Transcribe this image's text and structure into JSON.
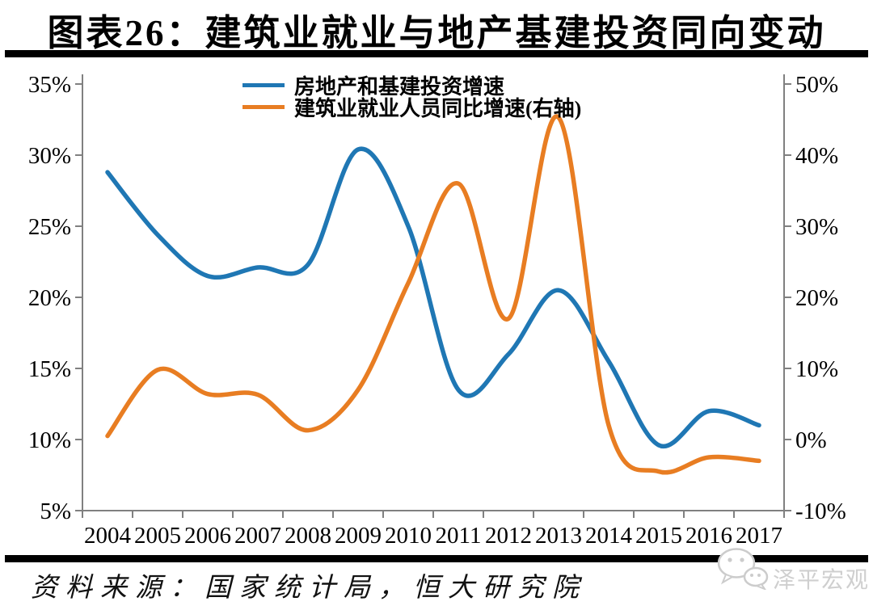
{
  "page": {
    "title": "图表26：建筑业就业与地产基建投资同向变动",
    "source_line": "资料来源：国家统计局，恒大研究院",
    "watermark": {
      "label": "泽平宏观",
      "icon": "wechat-logo-icon"
    }
  },
  "chart_data": {
    "type": "line",
    "title": "图表26：建筑业就业与地产基建投资同向变动",
    "categories": [
      "2004",
      "2005",
      "2006",
      "2007",
      "2008",
      "2009",
      "2010",
      "2011",
      "2012",
      "2013",
      "2014",
      "2015",
      "2016",
      "2017"
    ],
    "series": [
      {
        "name": "房地产和基建投资增速",
        "axis": "left",
        "color": "#1F77B4",
        "values": [
          28.8,
          24.4,
          21.5,
          22.1,
          22.3,
          30.4,
          25.0,
          13.5,
          16.0,
          20.5,
          15.5,
          9.6,
          12.0,
          11.0
        ]
      },
      {
        "name": "建筑业就业人员同比增速(右轴)",
        "axis": "right",
        "color": "#E87D22",
        "values": [
          0.5,
          9.8,
          6.4,
          6.3,
          1.3,
          7.0,
          22.0,
          36.0,
          17.0,
          45.3,
          2.0,
          -4.5,
          -2.5,
          -3.0
        ]
      }
    ],
    "y_axis_left": {
      "min": 5,
      "max": 35,
      "tick_values": [
        5,
        10,
        15,
        20,
        25,
        30,
        35
      ],
      "tick_labels": [
        "5%",
        "10%",
        "15%",
        "20%",
        "25%",
        "30%",
        "35%"
      ]
    },
    "y_axis_right": {
      "min": -10,
      "max": 50,
      "tick_values": [
        -10,
        0,
        10,
        20,
        30,
        40,
        50
      ],
      "tick_labels": [
        "-10%",
        "0%",
        "10%",
        "20%",
        "30%",
        "40%",
        "50%"
      ]
    },
    "x_axis": {
      "tick_labels": [
        "2004",
        "2005",
        "2006",
        "2007",
        "2008",
        "2009",
        "2010",
        "2011",
        "2012",
        "2013",
        "2014",
        "2015",
        "2016",
        "2017"
      ]
    },
    "legend_position": "top-center",
    "grid": false,
    "axis_color": "#808080"
  }
}
